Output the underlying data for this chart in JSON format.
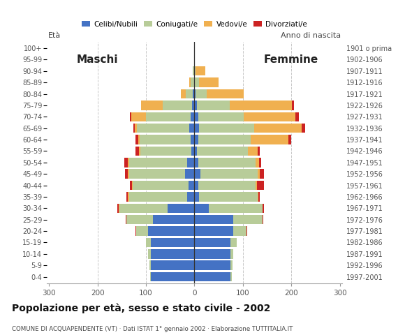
{
  "age_groups_bottom_to_top": [
    "0-4",
    "5-9",
    "10-14",
    "15-19",
    "20-24",
    "25-29",
    "30-34",
    "35-39",
    "40-44",
    "45-49",
    "50-54",
    "55-59",
    "60-64",
    "65-69",
    "70-74",
    "75-79",
    "80-84",
    "85-89",
    "90-94",
    "95-99",
    "100+"
  ],
  "birth_years_bottom_to_top": [
    "1997-2001",
    "1992-1996",
    "1987-1991",
    "1982-1986",
    "1977-1981",
    "1972-1976",
    "1967-1971",
    "1962-1966",
    "1957-1961",
    "1952-1956",
    "1947-1951",
    "1942-1946",
    "1937-1941",
    "1932-1936",
    "1927-1931",
    "1922-1926",
    "1917-1921",
    "1912-1916",
    "1907-1911",
    "1902-1906",
    "1901 o prima"
  ],
  "males_celibe": [
    90,
    90,
    90,
    90,
    95,
    85,
    55,
    15,
    12,
    20,
    15,
    7,
    8,
    10,
    8,
    5,
    3,
    0,
    0,
    0,
    0
  ],
  "males_coniugato": [
    2,
    3,
    5,
    10,
    25,
    55,
    100,
    120,
    115,
    115,
    120,
    105,
    105,
    108,
    92,
    60,
    15,
    8,
    3,
    0,
    0
  ],
  "males_vedovo": [
    0,
    0,
    0,
    0,
    0,
    1,
    1,
    2,
    2,
    3,
    3,
    2,
    3,
    5,
    30,
    45,
    10,
    3,
    0,
    0,
    0
  ],
  "males_divorziato": [
    0,
    0,
    0,
    0,
    1,
    1,
    3,
    3,
    4,
    5,
    6,
    7,
    5,
    3,
    3,
    0,
    0,
    0,
    0,
    0,
    0
  ],
  "females_nubile": [
    75,
    75,
    75,
    75,
    80,
    80,
    30,
    10,
    8,
    12,
    8,
    5,
    8,
    10,
    8,
    5,
    2,
    0,
    0,
    0,
    0
  ],
  "females_coniugata": [
    2,
    3,
    5,
    12,
    28,
    60,
    110,
    120,
    118,
    118,
    118,
    105,
    108,
    113,
    93,
    68,
    24,
    10,
    3,
    1,
    0
  ],
  "females_vedova": [
    0,
    0,
    0,
    0,
    0,
    1,
    1,
    2,
    3,
    5,
    7,
    20,
    78,
    98,
    108,
    128,
    75,
    40,
    20,
    0,
    0
  ],
  "females_divorziata": [
    0,
    0,
    0,
    0,
    1,
    1,
    3,
    3,
    15,
    8,
    5,
    5,
    5,
    7,
    7,
    5,
    0,
    0,
    0,
    0,
    0
  ],
  "color_celibe": "#4472c4",
  "color_coniugato": "#b8cc99",
  "color_vedovo": "#f0b050",
  "color_divorziato": "#cc2222",
  "title": "Popolazione per età, sesso e stato civile - 2002",
  "subtitle": "COMUNE DI ACQUAPENDENTE (VT) · Dati ISTAT 1° gennaio 2002 · Elaborazione TUTTITALIA.IT",
  "legend_labels": [
    "Celibi/Nubili",
    "Coniugati/e",
    "Vedovi/e",
    "Divorziati/e"
  ],
  "xlim": 305,
  "xtick_vals": [
    -300,
    -200,
    -100,
    0,
    100,
    200,
    300
  ],
  "bar_height": 0.82,
  "bg_color": "#ffffff",
  "grid_color": "#c8c8c8",
  "label_maschi": "Maschi",
  "label_femmine": "Femmine",
  "label_eta": "Età",
  "label_anno": "Anno di nascita"
}
